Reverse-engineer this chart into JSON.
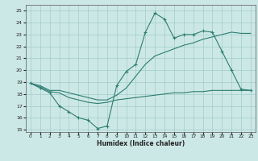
{
  "title": "",
  "xlabel": "Humidex (Indice chaleur)",
  "bg_color": "#cce8e6",
  "grid_color": "#a0ccca",
  "line_color": "#2d7d72",
  "xlim": [
    -0.5,
    23.5
  ],
  "ylim": [
    14.8,
    25.5
  ],
  "yticks": [
    15,
    16,
    17,
    18,
    19,
    20,
    21,
    22,
    23,
    24,
    25
  ],
  "xticks": [
    0,
    1,
    2,
    3,
    4,
    5,
    6,
    7,
    8,
    9,
    10,
    11,
    12,
    13,
    14,
    15,
    16,
    17,
    18,
    19,
    20,
    21,
    22,
    23
  ],
  "line1_x": [
    0,
    1,
    2,
    3,
    4,
    5,
    6,
    7,
    8,
    9,
    10,
    11,
    12,
    13,
    14,
    15,
    16,
    17,
    18,
    19,
    20,
    21,
    22,
    23
  ],
  "line1_y": [
    18.9,
    18.5,
    18.1,
    17.0,
    16.5,
    16.0,
    15.8,
    15.1,
    15.3,
    18.7,
    19.9,
    20.5,
    23.2,
    24.8,
    24.3,
    22.7,
    23.0,
    23.0,
    23.3,
    23.2,
    21.6,
    20.0,
    18.4,
    18.3
  ],
  "line2_x": [
    0,
    1,
    2,
    3,
    4,
    5,
    6,
    7,
    8,
    9,
    10,
    11,
    12,
    13,
    14,
    15,
    16,
    17,
    18,
    19,
    20,
    21,
    22,
    23
  ],
  "line2_y": [
    18.9,
    18.6,
    18.2,
    18.1,
    17.7,
    17.5,
    17.3,
    17.2,
    17.3,
    17.5,
    17.6,
    17.7,
    17.8,
    17.9,
    18.0,
    18.1,
    18.1,
    18.2,
    18.2,
    18.3,
    18.3,
    18.3,
    18.3,
    18.3
  ],
  "line3_x": [
    0,
    1,
    2,
    3,
    4,
    5,
    6,
    7,
    8,
    9,
    10,
    11,
    12,
    13,
    14,
    15,
    16,
    17,
    18,
    19,
    20,
    21,
    22,
    23
  ],
  "line3_y": [
    18.9,
    18.7,
    18.3,
    18.3,
    18.1,
    17.9,
    17.7,
    17.5,
    17.5,
    17.9,
    18.5,
    19.5,
    20.5,
    21.2,
    21.5,
    21.8,
    22.1,
    22.3,
    22.6,
    22.8,
    23.0,
    23.2,
    23.1,
    23.1
  ],
  "marker1_x": [
    0,
    1,
    2,
    3,
    4,
    5,
    6,
    7,
    8,
    9,
    10,
    11,
    12,
    13,
    14,
    15,
    16,
    17,
    18,
    19,
    20,
    21,
    22,
    23
  ],
  "marker1_y": [
    18.9,
    18.5,
    18.1,
    17.0,
    16.5,
    16.0,
    15.8,
    15.1,
    15.3,
    18.7,
    19.9,
    20.5,
    23.2,
    24.8,
    24.3,
    22.7,
    23.0,
    23.0,
    23.3,
    23.2,
    21.6,
    20.0,
    18.4,
    18.3
  ]
}
